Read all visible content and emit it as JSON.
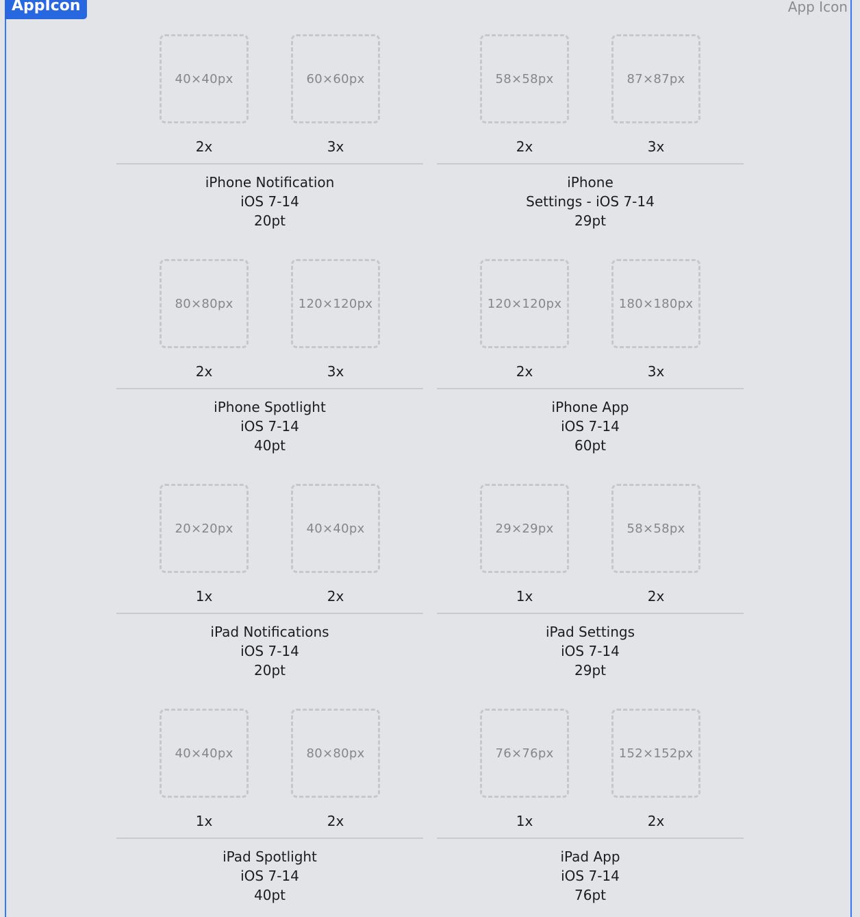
{
  "badge_label": "AppIcon",
  "set_name": "App Icon",
  "groups": [
    {
      "slots": [
        {
          "size": "40×40px",
          "scale": "2x"
        },
        {
          "size": "60×60px",
          "scale": "3x"
        }
      ],
      "title": "iPhone Notification",
      "subtitle": "iOS 7-14",
      "points": "20pt"
    },
    {
      "slots": [
        {
          "size": "58×58px",
          "scale": "2x"
        },
        {
          "size": "87×87px",
          "scale": "3x"
        }
      ],
      "title": "iPhone",
      "subtitle": "Settings - iOS 7-14",
      "points": "29pt"
    },
    {
      "slots": [
        {
          "size": "80×80px",
          "scale": "2x"
        },
        {
          "size": "120×120px",
          "scale": "3x"
        }
      ],
      "title": "iPhone Spotlight",
      "subtitle": "iOS 7-14",
      "points": "40pt"
    },
    {
      "slots": [
        {
          "size": "120×120px",
          "scale": "2x"
        },
        {
          "size": "180×180px",
          "scale": "3x"
        }
      ],
      "title": "iPhone App",
      "subtitle": "iOS 7-14",
      "points": "60pt"
    },
    {
      "slots": [
        {
          "size": "20×20px",
          "scale": "1x"
        },
        {
          "size": "40×40px",
          "scale": "2x"
        }
      ],
      "title": "iPad Notifications",
      "subtitle": "iOS 7-14",
      "points": "20pt"
    },
    {
      "slots": [
        {
          "size": "29×29px",
          "scale": "1x"
        },
        {
          "size": "58×58px",
          "scale": "2x"
        }
      ],
      "title": "iPad Settings",
      "subtitle": "iOS 7-14",
      "points": "29pt"
    },
    {
      "slots": [
        {
          "size": "40×40px",
          "scale": "1x"
        },
        {
          "size": "80×80px",
          "scale": "2x"
        }
      ],
      "title": "iPad Spotlight",
      "subtitle": "iOS 7-14",
      "points": "40pt"
    },
    {
      "slots": [
        {
          "size": "76×76px",
          "scale": "1x"
        },
        {
          "size": "152×152px",
          "scale": "2x"
        }
      ],
      "title": "iPad App",
      "subtitle": "iOS 7-14",
      "points": "76pt"
    }
  ]
}
